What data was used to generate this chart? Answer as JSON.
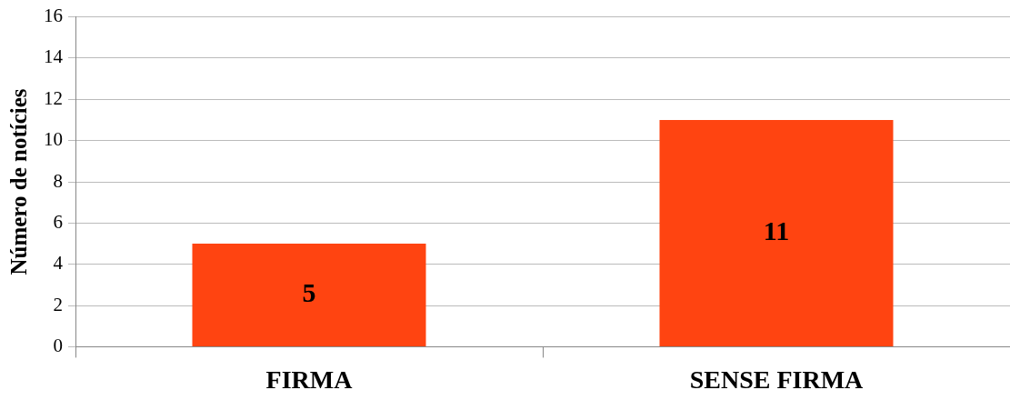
{
  "chart_data": {
    "type": "bar",
    "ylabel": "Número de notícies",
    "categories": [
      "FIRMA",
      "SENSE FIRMA"
    ],
    "values": [
      5,
      11
    ],
    "color": "#ff4411",
    "ylim": [
      0,
      16
    ],
    "yticks": [
      0,
      2,
      4,
      6,
      8,
      10,
      12,
      14,
      16
    ],
    "grid": "y",
    "legend": false,
    "data_labels": true
  }
}
